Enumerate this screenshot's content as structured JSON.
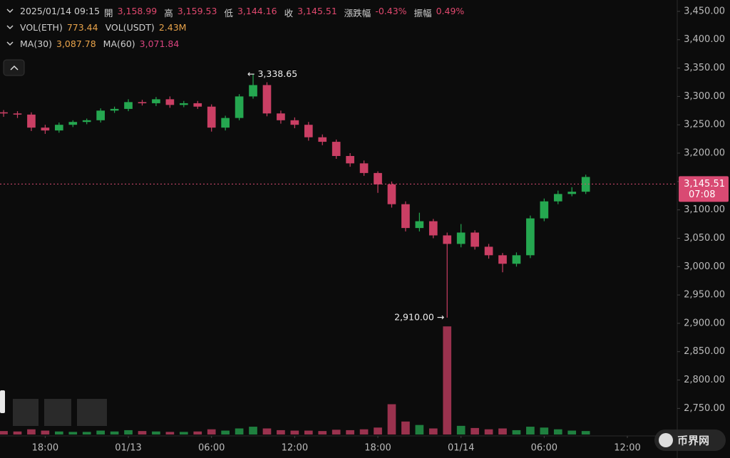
{
  "header": {
    "datetime": "2025/01/14 09:15",
    "fields": [
      {
        "label": "開",
        "value": "3,158.99"
      },
      {
        "label": "高",
        "value": "3,159.53"
      },
      {
        "label": "低",
        "value": "3,144.16"
      },
      {
        "label": "收",
        "value": "3,145.51"
      },
      {
        "label": "漲跌幅",
        "value": "-0.43%"
      },
      {
        "label": "振幅",
        "value": "0.49%"
      }
    ]
  },
  "volume_legend": [
    {
      "label": "VOL(ETH)",
      "value": "773.44"
    },
    {
      "label": "VOL(USDT)",
      "value": "2.43M"
    }
  ],
  "ma_legend": [
    {
      "label": "MA(30)",
      "value": "3,087.78",
      "color": "#e8a34a"
    },
    {
      "label": "MA(60)",
      "value": "3,071.84",
      "color": "#d9447f"
    }
  ],
  "watermark": "币界网",
  "chart_data": {
    "type": "candlestick",
    "up_color": "#25a750",
    "down_color": "#ca3f64",
    "x": [
      -9,
      -8,
      -7,
      -6,
      -5,
      -4,
      -3,
      -2,
      -1,
      0,
      1,
      2,
      3,
      4,
      5,
      6,
      7,
      8,
      9,
      10,
      11,
      12,
      13,
      14,
      15,
      16,
      17,
      18,
      19,
      20,
      21,
      22,
      23,
      24,
      25,
      26,
      27,
      28,
      29,
      30,
      31,
      32,
      33
    ],
    "open": [
      3272,
      3270,
      3268,
      3245,
      3240,
      3250,
      3255,
      3258,
      3275,
      3278,
      3290,
      3288,
      3295,
      3285,
      3288,
      3282,
      3245,
      3262,
      3300,
      3320,
      3270,
      3258,
      3250,
      3228,
      3220,
      3195,
      3182,
      3165,
      3145,
      3110,
      3068,
      3080,
      3055,
      3040,
      3060,
      3035,
      3020,
      3005,
      3020,
      3085,
      3115,
      3128,
      3132
    ],
    "high": [
      3276,
      3274,
      3272,
      3250,
      3254,
      3258,
      3261,
      3279,
      3282,
      3295,
      3294,
      3299,
      3300,
      3292,
      3292,
      3286,
      3266,
      3304,
      3338.65,
      3325,
      3275,
      3263,
      3255,
      3233,
      3224,
      3200,
      3187,
      3168,
      3150,
      3115,
      3095,
      3084,
      3060,
      3075,
      3064,
      3040,
      3024,
      3025,
      3090,
      3120,
      3134,
      3140,
      3162
    ],
    "low": [
      3264,
      3262,
      3239,
      3234,
      3236,
      3246,
      3251,
      3254,
      3271,
      3274,
      3284,
      3283,
      3280,
      3281,
      3278,
      3238,
      3240,
      3258,
      3296,
      3265,
      3252,
      3244,
      3222,
      3214,
      3190,
      3176,
      3160,
      3130,
      3104,
      3062,
      3062,
      3050,
      2910,
      3034,
      3030,
      3014,
      2990,
      3000,
      3015,
      3080,
      3110,
      3124,
      3128
    ],
    "close": [
      3270,
      3268,
      3245,
      3240,
      3250,
      3255,
      3258,
      3275,
      3278,
      3290,
      3288,
      3295,
      3285,
      3288,
      3282,
      3245,
      3262,
      3300,
      3320,
      3270,
      3258,
      3250,
      3228,
      3220,
      3195,
      3182,
      3165,
      3145,
      3110,
      3068,
      3080,
      3055,
      3040,
      3060,
      3035,
      3020,
      3005,
      3020,
      3085,
      3115,
      3128,
      3132,
      3158
    ],
    "volume": [
      8000,
      7000,
      12000,
      9000,
      7000,
      6000,
      6000,
      9000,
      7000,
      10000,
      8000,
      7000,
      6000,
      6000,
      7000,
      12000,
      9000,
      14000,
      18000,
      14000,
      10000,
      9000,
      9000,
      8000,
      11000,
      10000,
      12000,
      16000,
      70000,
      30000,
      22000,
      14000,
      250000,
      20000,
      15000,
      12000,
      14000,
      10000,
      18000,
      16000,
      12000,
      9000,
      8000
    ],
    "vol_ylim": [
      0,
      280000
    ],
    "xlim": [
      -9.26,
      39.6
    ],
    "xticks": [
      {
        "value": -6,
        "label": "18:00"
      },
      {
        "value": 0,
        "label": "01/13"
      },
      {
        "value": 6,
        "label": "06:00"
      },
      {
        "value": 12,
        "label": "12:00"
      },
      {
        "value": 18,
        "label": "18:00"
      },
      {
        "value": 24,
        "label": "01/14"
      },
      {
        "value": 30,
        "label": "06:00"
      },
      {
        "value": 36,
        "label": "12:00"
      }
    ],
    "ylim": [
      2704,
      3470
    ],
    "yticks": [
      {
        "value": 3450,
        "label": "3,450.00"
      },
      {
        "value": 3400,
        "label": "3,400.00"
      },
      {
        "value": 3350,
        "label": "3,350.00"
      },
      {
        "value": 3300,
        "label": "3,300.00"
      },
      {
        "value": 3250,
        "label": "3,250.00"
      },
      {
        "value": 3200,
        "label": "3,200.00"
      },
      {
        "value": 3150,
        "label": "3,150.00"
      },
      {
        "value": 3100,
        "label": "3,100.00"
      },
      {
        "value": 3050,
        "label": "3,050.00"
      },
      {
        "value": 3000,
        "label": "3,000.00"
      },
      {
        "value": 2950,
        "label": "2,950.00"
      },
      {
        "value": 2900,
        "label": "2,900.00"
      },
      {
        "value": 2850,
        "label": "2,850.00"
      },
      {
        "value": 2800,
        "label": "2,800.00"
      },
      {
        "value": 2750,
        "label": "2,750.00"
      }
    ],
    "last_price": {
      "value": 3145.51,
      "label": "3,145.51"
    },
    "countdown": "07:08",
    "last_price_color": "#d94a73",
    "annotations": [
      {
        "x": 9,
        "y": 3338.65,
        "label": "← 3,338.65"
      },
      {
        "x": 23,
        "y": 2910,
        "label": "2,910.00 →"
      }
    ]
  }
}
